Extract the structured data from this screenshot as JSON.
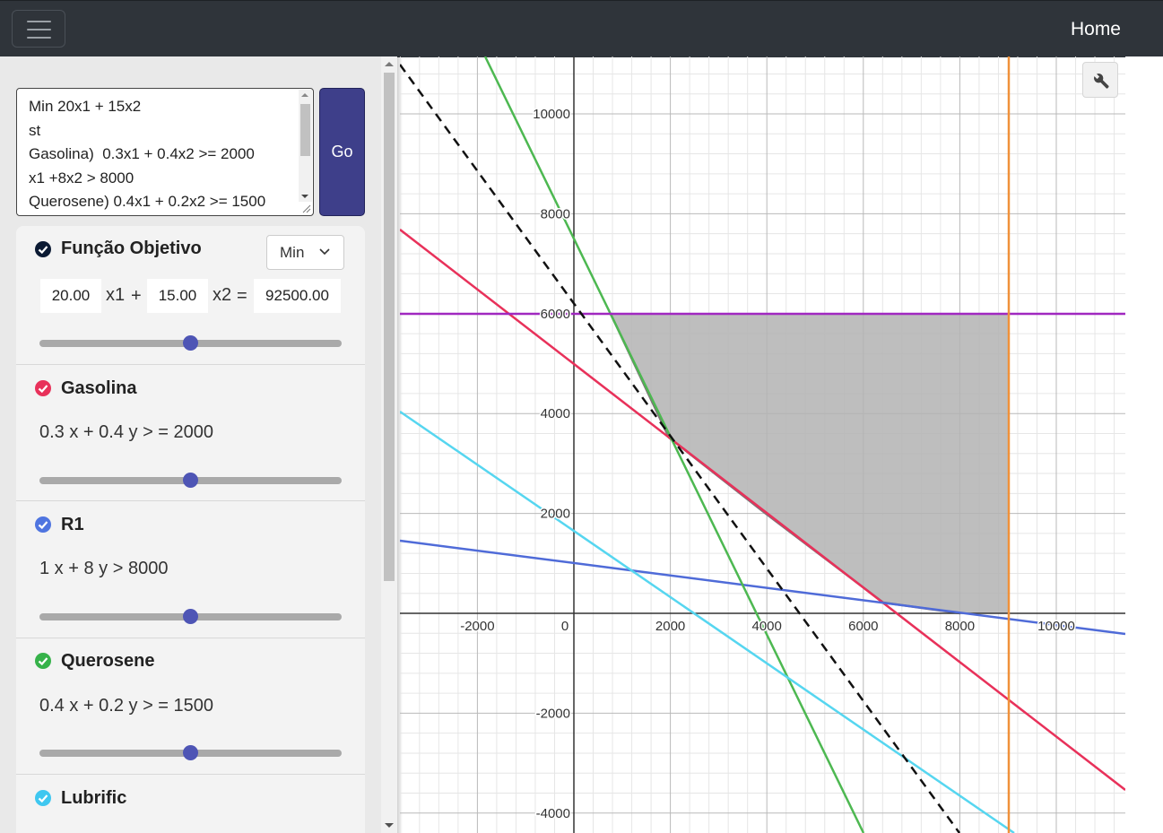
{
  "navbar": {
    "menu_icon": "hamburger-icon",
    "home_label": "Home"
  },
  "model": {
    "lines": [
      "Min 20x1 + 15x2",
      "st",
      "Gasolina)  0.3x1 + 0.4x2 >= 2000",
      "x1 +8x2 > 8000",
      "Querosene) 0.4x1 + 0.2x2 >= 1500"
    ],
    "go_label": "Go"
  },
  "objective": {
    "title": "Função Objetivo",
    "sense": "Min",
    "coef1": "20.00",
    "var1": "x1",
    "plus": "+",
    "coef2": "15.00",
    "var2": "x2",
    "equals": "=",
    "value": "92500.00",
    "slider_level": 0.5,
    "color": "#0b1a33"
  },
  "constraints": [
    {
      "title": "Gasolina",
      "expr": "0.3 x + 0.4 y > = 2000",
      "color": "#e8315a",
      "slider_level": 0.5
    },
    {
      "title": "R1",
      "expr": "1 x + 8 y > 8000",
      "color": "#4f75e0",
      "slider_level": 0.5
    },
    {
      "title": "Querosene",
      "expr": "0.4 x + 0.2 y > = 1500",
      "color": "#36b24a",
      "slider_level": 0.5
    },
    {
      "title": "Lubrific",
      "expr": "",
      "color": "#3fc7f0",
      "slider_level": 0.5
    }
  ],
  "graph": {
    "wrench_icon": "wrench-icon",
    "x_ticks": [
      "-2000",
      "0",
      "2000",
      "4000",
      "6000",
      "8000",
      "10000"
    ],
    "y_ticks": [
      "10000",
      "8000",
      "6000",
      "4000",
      "2000",
      "-2000",
      "-4000"
    ],
    "colors": {
      "gasolina": "#e8315a",
      "r1": "#4f6bd8",
      "querosene": "#4db851",
      "lubrific": "#56d6f0",
      "purple": "#a028c0",
      "orange": "#f0913a",
      "objective": "#111111",
      "feasible": "#b5b5b5"
    }
  }
}
